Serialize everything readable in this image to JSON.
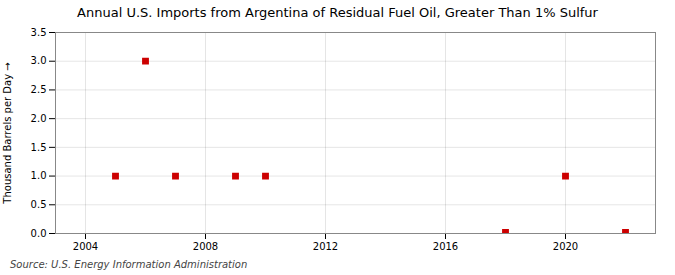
{
  "chart_data": {
    "type": "scatter",
    "title": "Annual U.S. Imports from Argentina of Residual Fuel Oil, Greater Than 1% Sulfur",
    "ylabel": "Thousand Barrels per Day",
    "source": "Source: U.S. Energy Information Administration",
    "x": [
      2005,
      2006,
      2007,
      2009,
      2010,
      2018,
      2020,
      2022
    ],
    "values": [
      1.0,
      3.0,
      1.0,
      1.0,
      1.0,
      0.02,
      1.0,
      0.02
    ],
    "color": "#cc0000",
    "marker": "square",
    "xlim": [
      2003,
      2023
    ],
    "xticks": [
      2004,
      2008,
      2012,
      2016,
      2020
    ],
    "ylim": [
      0.0,
      3.5
    ],
    "yticks": [
      {
        "value": 0.0,
        "label": "0.0"
      },
      0.5,
      {
        "value": 1.0,
        "label": "1.0"
      },
      1.5,
      {
        "value": 2.0,
        "label": "2.0"
      },
      2.5,
      {
        "value": 3.0,
        "label": "3.0"
      },
      3.5
    ],
    "grid": true
  }
}
